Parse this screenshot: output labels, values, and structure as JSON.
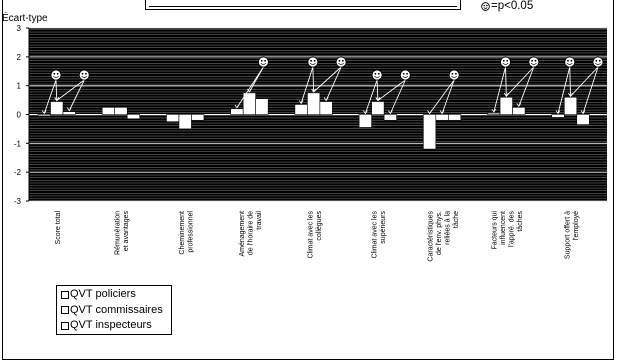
{
  "chart_data": {
    "type": "bar",
    "ylabel": "Écart-type",
    "ylim": [
      -3,
      3
    ],
    "yticks": [
      "3",
      "2",
      "1",
      "0",
      "-1",
      "-2",
      "-3"
    ],
    "categories": [
      [
        "Score total"
      ],
      [
        "Rémunération",
        "et avantages"
      ],
      [
        "Cheminement",
        "professionnel"
      ],
      [
        "Aménagement",
        "de l'horaire de",
        "travail"
      ],
      [
        "Climat avec les",
        "collègues"
      ],
      [
        "Climat avec les",
        "supérieurs"
      ],
      [
        "Caractéristiques",
        "de l'env. phys.",
        "reliées à la",
        "tâche"
      ],
      [
        "Facteurs qui",
        "influencent",
        "l'appré. des",
        "tâches"
      ],
      [
        "Support offert à",
        "l'employé"
      ]
    ],
    "series": [
      {
        "name": "QVT policiers",
        "values": [
          -0.05,
          0.25,
          -0.25,
          0.2,
          0.35,
          -0.45,
          -1.2,
          0.05,
          -0.1
        ]
      },
      {
        "name": "QVT commissaires",
        "values": [
          0.45,
          0.25,
          -0.5,
          0.75,
          0.75,
          0.45,
          -0.2,
          0.6,
          0.6
        ]
      },
      {
        "name": "QVT inspecteurs",
        "values": [
          0.1,
          -0.15,
          -0.2,
          0.55,
          0.45,
          -0.2,
          -0.2,
          0.25,
          -0.35
        ]
      }
    ],
    "significance": [
      {
        "category": 0,
        "markers": [
          {
            "x": 0.42,
            "targets": [
              0,
              1
            ]
          },
          {
            "x": 0.86,
            "targets": [
              1,
              2
            ]
          }
        ]
      },
      {
        "category": 3,
        "markers": [
          {
            "x": 0.65,
            "targets": [
              0,
              1
            ]
          }
        ]
      },
      {
        "category": 4,
        "markers": [
          {
            "x": 0.42,
            "targets": [
              0,
              1
            ]
          },
          {
            "x": 0.86,
            "targets": [
              1,
              2
            ]
          }
        ]
      },
      {
        "category": 5,
        "markers": [
          {
            "x": 0.42,
            "targets": [
              0,
              1
            ]
          },
          {
            "x": 0.86,
            "targets": [
              1,
              2
            ]
          }
        ]
      },
      {
        "category": 6,
        "markers": [
          {
            "x": 0.62,
            "targets": [
              0,
              1
            ]
          }
        ]
      },
      {
        "category": 7,
        "markers": [
          {
            "x": 0.42,
            "targets": [
              0,
              1
            ]
          },
          {
            "x": 0.86,
            "targets": [
              1,
              2
            ]
          }
        ]
      },
      {
        "category": 8,
        "markers": [
          {
            "x": 0.42,
            "targets": [
              0,
              1
            ]
          },
          {
            "x": 0.86,
            "targets": [
              1,
              2
            ]
          }
        ]
      }
    ],
    "significance_note": "=p<0.05",
    "legend_placement": "bottom-left",
    "plot_background": "striped-black",
    "bar_color": "#ffffff"
  }
}
